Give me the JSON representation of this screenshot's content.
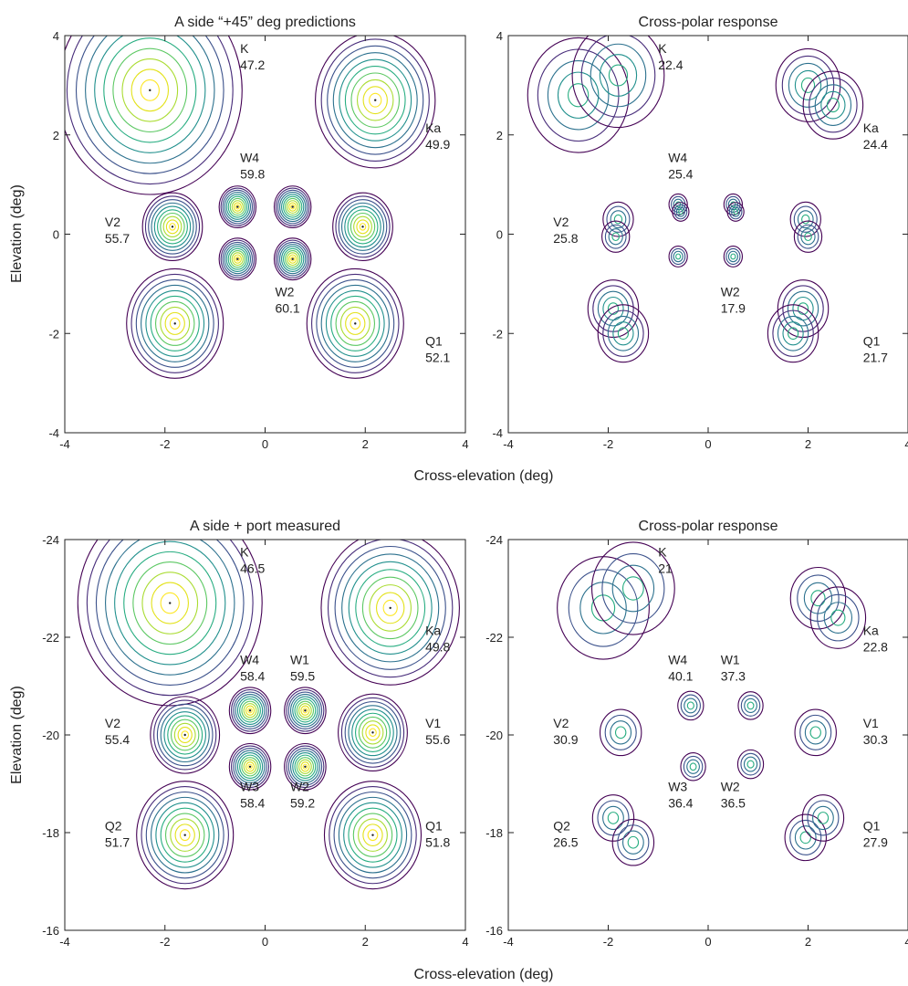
{
  "figure": {
    "xlabel_top": "Cross-elevation (deg)",
    "xlabel_bottom": "Cross-elevation (deg)",
    "ylabel_top": "Elevation (deg)",
    "ylabel_bottom": "Elevation (deg)",
    "contour_colors": [
      "#440154",
      "#472c7a",
      "#3b518b",
      "#2c718e",
      "#21908d",
      "#27ad81",
      "#5cc863",
      "#aadc32",
      "#e3e21a",
      "#fde725"
    ]
  },
  "chart_data": [
    {
      "type": "contour",
      "title": "A side “+45” deg predictions",
      "xlim": [
        -4,
        4
      ],
      "ylim": [
        -4,
        4
      ],
      "xticks": [
        -4,
        -2,
        0,
        2,
        4
      ],
      "yticks": [
        4,
        2,
        0,
        -2,
        -4
      ],
      "labels": [
        {
          "band": "K",
          "value": "47.2",
          "x": -0.5,
          "y": 3.8
        },
        {
          "band": "Ka",
          "value": "49.9",
          "x": 3.2,
          "y": 2.2
        },
        {
          "band": "W4",
          "value": "59.8",
          "x": -0.5,
          "y": 1.6
        },
        {
          "band": "V2",
          "value": "55.7",
          "x": -3.2,
          "y": 0.3
        },
        {
          "band": "W2",
          "value": "60.1",
          "x": 0.2,
          "y": -1.1
        },
        {
          "band": "Q1",
          "value": "52.1",
          "x": 3.2,
          "y": -2.1
        }
      ],
      "beams": [
        {
          "x": -2.3,
          "y": 2.9,
          "r": 2.0,
          "levels": 10,
          "peak": "max"
        },
        {
          "x": 2.2,
          "y": 2.7,
          "r": 1.3,
          "levels": 10,
          "peak": "max"
        },
        {
          "x": -0.55,
          "y": 0.55,
          "r": 0.4,
          "levels": 10,
          "peak": "max"
        },
        {
          "x": 0.55,
          "y": 0.55,
          "r": 0.4,
          "levels": 10,
          "peak": "max"
        },
        {
          "x": -0.55,
          "y": -0.5,
          "r": 0.4,
          "levels": 10,
          "peak": "max"
        },
        {
          "x": 0.55,
          "y": -0.5,
          "r": 0.4,
          "levels": 10,
          "peak": "max"
        },
        {
          "x": -1.85,
          "y": 0.15,
          "r": 0.65,
          "levels": 10,
          "peak": "max"
        },
        {
          "x": 1.95,
          "y": 0.15,
          "r": 0.65,
          "levels": 10,
          "peak": "max"
        },
        {
          "x": -1.8,
          "y": -1.8,
          "r": 1.05,
          "levels": 10,
          "peak": "max"
        },
        {
          "x": 1.8,
          "y": -1.8,
          "r": 1.05,
          "levels": 10,
          "peak": "max"
        }
      ]
    },
    {
      "type": "contour",
      "title": "Cross-polar response",
      "xlim": [
        -4,
        4
      ],
      "ylim": [
        -4,
        4
      ],
      "xticks": [
        -4,
        -2,
        0,
        2,
        4
      ],
      "yticks": [
        4,
        2,
        0,
        -2,
        -4
      ],
      "labels": [
        {
          "band": "K",
          "value": "22.4",
          "x": -1.0,
          "y": 3.8
        },
        {
          "band": "Ka",
          "value": "24.4",
          "x": 3.1,
          "y": 2.2
        },
        {
          "band": "W4",
          "value": "25.4",
          "x": -0.8,
          "y": 1.6
        },
        {
          "band": "V2",
          "value": "25.8",
          "x": -3.1,
          "y": 0.3
        },
        {
          "band": "W2",
          "value": "17.9",
          "x": 0.25,
          "y": -1.1
        },
        {
          "band": "Q1",
          "value": "21.7",
          "x": 3.1,
          "y": -2.1
        }
      ],
      "beams": [
        {
          "x": -2.6,
          "y": 2.8,
          "r": 1.1,
          "levels": 5,
          "peak": "mid"
        },
        {
          "x": -1.8,
          "y": 3.2,
          "r": 1.0,
          "levels": 5,
          "peak": "mid"
        },
        {
          "x": 2.0,
          "y": 3.0,
          "r": 0.7,
          "levels": 5,
          "peak": "mid"
        },
        {
          "x": 2.5,
          "y": 2.6,
          "r": 0.65,
          "levels": 5,
          "peak": "mid"
        },
        {
          "x": -0.6,
          "y": 0.6,
          "r": 0.2,
          "levels": 4,
          "peak": "mid"
        },
        {
          "x": -0.55,
          "y": 0.45,
          "r": 0.18,
          "levels": 4,
          "peak": "mid"
        },
        {
          "x": 0.5,
          "y": 0.6,
          "r": 0.2,
          "levels": 4,
          "peak": "mid"
        },
        {
          "x": 0.55,
          "y": 0.45,
          "r": 0.18,
          "levels": 4,
          "peak": "mid"
        },
        {
          "x": -0.6,
          "y": -0.45,
          "r": 0.2,
          "levels": 4,
          "peak": "mid"
        },
        {
          "x": 0.5,
          "y": -0.45,
          "r": 0.2,
          "levels": 4,
          "peak": "mid"
        },
        {
          "x": -1.8,
          "y": 0.3,
          "r": 0.33,
          "levels": 4,
          "peak": "mid"
        },
        {
          "x": -1.85,
          "y": -0.05,
          "r": 0.3,
          "levels": 4,
          "peak": "mid"
        },
        {
          "x": 1.95,
          "y": 0.3,
          "r": 0.33,
          "levels": 4,
          "peak": "mid"
        },
        {
          "x": 2.0,
          "y": -0.05,
          "r": 0.3,
          "levels": 4,
          "peak": "mid"
        },
        {
          "x": -1.9,
          "y": -1.5,
          "r": 0.55,
          "levels": 5,
          "peak": "mid"
        },
        {
          "x": -1.7,
          "y": -2.0,
          "r": 0.55,
          "levels": 5,
          "peak": "mid"
        },
        {
          "x": 1.9,
          "y": -1.5,
          "r": 0.55,
          "levels": 5,
          "peak": "mid"
        },
        {
          "x": 1.7,
          "y": -2.0,
          "r": 0.55,
          "levels": 5,
          "peak": "mid"
        }
      ]
    },
    {
      "type": "contour",
      "title": "A side + port measured",
      "xlim": [
        -4,
        4
      ],
      "ylim": [
        -24,
        -16
      ],
      "xticks": [
        -4,
        -2,
        0,
        2,
        4
      ],
      "yticks": [
        -24,
        -22,
        -20,
        -18,
        -16
      ],
      "labels": [
        {
          "band": "K",
          "value": "46.5",
          "x": -0.5,
          "y": -23.8
        },
        {
          "band": "Ka",
          "value": "49.8",
          "x": 3.2,
          "y": -22.2
        },
        {
          "band": "W4",
          "value": "58.4",
          "x": -0.5,
          "y": -21.6
        },
        {
          "band": "W1",
          "value": "59.5",
          "x": 0.5,
          "y": -21.6
        },
        {
          "band": "V2",
          "value": "55.4",
          "x": -3.2,
          "y": -20.3
        },
        {
          "band": "V1",
          "value": "55.6",
          "x": 3.2,
          "y": -20.3
        },
        {
          "band": "W3",
          "value": "58.4",
          "x": -0.5,
          "y": -19.0
        },
        {
          "band": "W2",
          "value": "59.2",
          "x": 0.5,
          "y": -19.0
        },
        {
          "band": "Q2",
          "value": "51.7",
          "x": -3.2,
          "y": -18.2
        },
        {
          "band": "Q1",
          "value": "51.8",
          "x": 3.2,
          "y": -18.2
        }
      ],
      "beams": [
        {
          "x": -1.9,
          "y": -22.7,
          "r": 2.0,
          "levels": 10,
          "peak": "max"
        },
        {
          "x": 2.5,
          "y": -22.6,
          "r": 1.5,
          "levels": 10,
          "peak": "max"
        },
        {
          "x": -0.3,
          "y": -20.5,
          "r": 0.45,
          "levels": 10,
          "peak": "max"
        },
        {
          "x": 0.8,
          "y": -20.5,
          "r": 0.45,
          "levels": 10,
          "peak": "max"
        },
        {
          "x": -0.3,
          "y": -19.35,
          "r": 0.45,
          "levels": 10,
          "peak": "max"
        },
        {
          "x": 0.8,
          "y": -19.35,
          "r": 0.45,
          "levels": 10,
          "peak": "max"
        },
        {
          "x": -1.6,
          "y": -20.0,
          "r": 0.75,
          "levels": 10,
          "peak": "max"
        },
        {
          "x": 2.15,
          "y": -20.05,
          "r": 0.75,
          "levels": 10,
          "peak": "max"
        },
        {
          "x": -1.6,
          "y": -17.95,
          "r": 1.05,
          "levels": 10,
          "peak": "max"
        },
        {
          "x": 2.15,
          "y": -17.95,
          "r": 1.05,
          "levels": 10,
          "peak": "max"
        }
      ]
    },
    {
      "type": "contour",
      "title": "Cross-polar response",
      "xlim": [
        -4,
        4
      ],
      "ylim": [
        -24,
        -16
      ],
      "xticks": [
        -4,
        -2,
        0,
        2,
        4
      ],
      "yticks": [
        -24,
        -22,
        -20,
        -18,
        -16
      ],
      "labels": [
        {
          "band": "K",
          "value": "21",
          "x": -1.0,
          "y": -23.8
        },
        {
          "band": "Ka",
          "value": "22.8",
          "x": 3.1,
          "y": -22.2
        },
        {
          "band": "W4",
          "value": "40.1",
          "x": -0.8,
          "y": -21.6
        },
        {
          "band": "W1",
          "value": "37.3",
          "x": 0.25,
          "y": -21.6
        },
        {
          "band": "V2",
          "value": "30.9",
          "x": -3.1,
          "y": -20.3
        },
        {
          "band": "V1",
          "value": "30.3",
          "x": 3.1,
          "y": -20.3
        },
        {
          "band": "W3",
          "value": "36.4",
          "x": -0.8,
          "y": -19.0
        },
        {
          "band": "W2",
          "value": "36.5",
          "x": 0.25,
          "y": -19.0
        },
        {
          "band": "Q2",
          "value": "26.5",
          "x": -3.1,
          "y": -18.2
        },
        {
          "band": "Q1",
          "value": "27.9",
          "x": 3.1,
          "y": -18.2
        }
      ],
      "beams": [
        {
          "x": -2.1,
          "y": -22.6,
          "r": 1.0,
          "levels": 4,
          "peak": "mid"
        },
        {
          "x": -1.5,
          "y": -23.0,
          "r": 0.9,
          "levels": 4,
          "peak": "mid"
        },
        {
          "x": 2.2,
          "y": -22.8,
          "r": 0.6,
          "levels": 4,
          "peak": "mid"
        },
        {
          "x": 2.6,
          "y": -22.4,
          "r": 0.6,
          "levels": 4,
          "peak": "mid"
        },
        {
          "x": -0.35,
          "y": -20.6,
          "r": 0.28,
          "levels": 4,
          "peak": "mid"
        },
        {
          "x": 0.85,
          "y": -20.6,
          "r": 0.27,
          "levels": 4,
          "peak": "mid"
        },
        {
          "x": -0.3,
          "y": -19.35,
          "r": 0.27,
          "levels": 4,
          "peak": "mid"
        },
        {
          "x": 0.85,
          "y": -19.4,
          "r": 0.28,
          "levels": 4,
          "peak": "mid"
        },
        {
          "x": -1.75,
          "y": -20.05,
          "r": 0.45,
          "levels": 4,
          "peak": "mid"
        },
        {
          "x": 2.15,
          "y": -20.05,
          "r": 0.45,
          "levels": 4,
          "peak": "mid"
        },
        {
          "x": -1.9,
          "y": -18.3,
          "r": 0.45,
          "levels": 4,
          "peak": "mid"
        },
        {
          "x": -1.5,
          "y": -17.8,
          "r": 0.45,
          "levels": 4,
          "peak": "mid"
        },
        {
          "x": 1.95,
          "y": -17.9,
          "r": 0.45,
          "levels": 4,
          "peak": "mid"
        },
        {
          "x": 2.3,
          "y": -18.3,
          "r": 0.45,
          "levels": 4,
          "peak": "mid"
        }
      ]
    }
  ]
}
